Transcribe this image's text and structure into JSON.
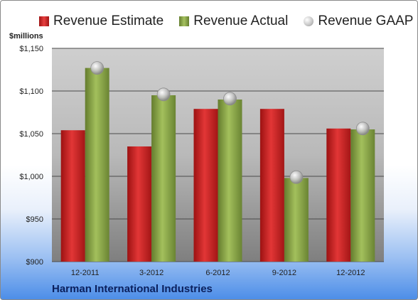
{
  "chart_data": {
    "type": "bar",
    "unit_label": "$millions",
    "company": "Harman International Industries",
    "categories": [
      "12-2011",
      "3-2012",
      "6-2012",
      "9-2012",
      "12-2012"
    ],
    "series": [
      {
        "name": "Revenue Estimate",
        "kind": "bar",
        "color": "#d42020",
        "values": [
          1054,
          1035,
          1079,
          1079,
          1056
        ]
      },
      {
        "name": "Revenue Actual",
        "kind": "bar",
        "color": "#8aaa48",
        "values": [
          1127,
          1095,
          1090,
          998,
          1055
        ]
      },
      {
        "name": "Revenue GAAP",
        "kind": "marker",
        "color": "#b8b8b8",
        "values": [
          1127,
          1096,
          1091,
          999,
          1056
        ]
      }
    ],
    "ylim": [
      900,
      1150
    ],
    "yticks": [
      900,
      950,
      1000,
      1050,
      1100,
      1150
    ],
    "ytick_labels": [
      "$900",
      "$950",
      "$1,000",
      "$1,050",
      "$1,100",
      "$1,150"
    ],
    "grid": true,
    "legend_position": "top"
  }
}
